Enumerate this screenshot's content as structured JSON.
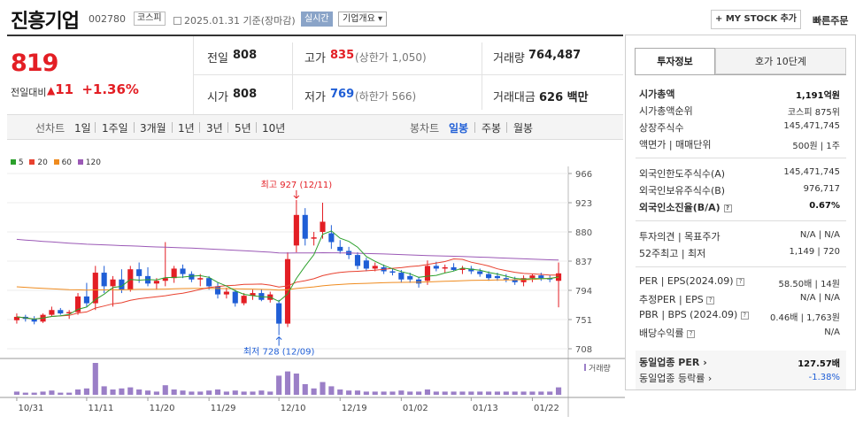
{
  "header": {
    "stock_name": "진흥기업",
    "stock_code": "002780",
    "market_badge": "코스피",
    "date_text": "2025.01.31 기준(장마감)",
    "realtime_label": "실시간",
    "company_overview_label": "기업개요 ▾",
    "my_stock_button": "+ MY STOCK 추가",
    "quick_order": "빠른주문"
  },
  "price": {
    "current": "819",
    "change_label": "전일대비",
    "change_arrow": "▲",
    "change_amount": "11",
    "change_percent": "+1.36%"
  },
  "summary": {
    "prev_close_label": "전일",
    "prev_close": "808",
    "open_label": "시가",
    "open": "808",
    "high_label": "고가",
    "high": "835",
    "upper_limit": "(상한가 1,050)",
    "low_label": "저가",
    "low": "769",
    "lower_limit": "(하한가 566)",
    "volume_label": "거래량",
    "volume": "764,487",
    "amount_label": "거래대금",
    "amount": "626",
    "amount_unit": "백만"
  },
  "periods": {
    "line_label": "선차트",
    "line_items": [
      "1일",
      "1주일",
      "3개월",
      "1년",
      "3년",
      "5년",
      "10년"
    ],
    "candle_label": "봉차트",
    "candle_items": [
      "일봉",
      "주봉",
      "월봉"
    ],
    "candle_selected": "일봉"
  },
  "legend": [
    {
      "label": "5",
      "color": "#2ca02c"
    },
    {
      "label": "20",
      "color": "#e8412f"
    },
    {
      "label": "60",
      "color": "#ef8b1f"
    },
    {
      "label": "120",
      "color": "#9b59b6"
    }
  ],
  "chart_data": {
    "type": "candlestick",
    "y_ticks": [
      "966",
      "923",
      "880",
      "837",
      "794",
      "751",
      "708"
    ],
    "ylim": [
      708,
      966
    ],
    "x_ticks": [
      "10/31",
      "11/11",
      "11/20",
      "11/29",
      "12/10",
      "12/19",
      "01/02",
      "01/13",
      "01/22"
    ],
    "high_annotation": "최고 927 (12/11)",
    "low_annotation": "최저 728 (12/09)",
    "volume_label": "거래량",
    "candles": [
      [
        750,
        760,
        745,
        755
      ],
      [
        755,
        758,
        748,
        752
      ],
      [
        752,
        756,
        744,
        748
      ],
      [
        748,
        760,
        746,
        758
      ],
      [
        758,
        770,
        755,
        765
      ],
      [
        765,
        768,
        758,
        760
      ],
      [
        760,
        765,
        752,
        762
      ],
      [
        762,
        790,
        758,
        785
      ],
      [
        785,
        805,
        770,
        775
      ],
      [
        775,
        830,
        765,
        820
      ],
      [
        820,
        830,
        790,
        800
      ],
      [
        800,
        815,
        770,
        810
      ],
      [
        810,
        825,
        790,
        795
      ],
      [
        795,
        830,
        792,
        825
      ],
      [
        825,
        835,
        805,
        815
      ],
      [
        815,
        828,
        800,
        804
      ],
      [
        804,
        812,
        795,
        808
      ],
      [
        808,
        865,
        800,
        812
      ],
      [
        812,
        830,
        805,
        826
      ],
      [
        826,
        832,
        812,
        818
      ],
      [
        818,
        822,
        806,
        810
      ],
      [
        810,
        818,
        800,
        812
      ],
      [
        812,
        815,
        795,
        800
      ],
      [
        800,
        805,
        782,
        788
      ],
      [
        788,
        798,
        782,
        792
      ],
      [
        792,
        795,
        770,
        775
      ],
      [
        775,
        790,
        772,
        786
      ],
      [
        786,
        795,
        780,
        790
      ],
      [
        790,
        796,
        778,
        780
      ],
      [
        780,
        792,
        776,
        788
      ],
      [
        775,
        780,
        728,
        745
      ],
      [
        745,
        850,
        740,
        840
      ],
      [
        860,
        927,
        850,
        905
      ],
      [
        905,
        915,
        860,
        870
      ],
      [
        870,
        880,
        860,
        872
      ],
      [
        880,
        923,
        870,
        895
      ],
      [
        878,
        890,
        855,
        865
      ],
      [
        858,
        868,
        848,
        852
      ],
      [
        852,
        858,
        840,
        846
      ],
      [
        846,
        850,
        825,
        830
      ],
      [
        838,
        842,
        822,
        826
      ],
      [
        826,
        835,
        822,
        830
      ],
      [
        828,
        832,
        818,
        822
      ],
      [
        822,
        826,
        816,
        820
      ],
      [
        820,
        824,
        805,
        810
      ],
      [
        815,
        820,
        805,
        810
      ],
      [
        810,
        814,
        798,
        804
      ],
      [
        808,
        838,
        802,
        830
      ],
      [
        830,
        836,
        822,
        826
      ],
      [
        826,
        832,
        820,
        828
      ],
      [
        828,
        834,
        822,
        824
      ],
      [
        824,
        830,
        818,
        826
      ],
      [
        826,
        830,
        818,
        822
      ],
      [
        822,
        826,
        814,
        818
      ],
      [
        818,
        822,
        808,
        812
      ],
      [
        815,
        820,
        808,
        812
      ],
      [
        812,
        818,
        806,
        810
      ],
      [
        810,
        814,
        802,
        806
      ],
      [
        806,
        816,
        800,
        812
      ],
      [
        812,
        818,
        806,
        816
      ],
      [
        816,
        820,
        808,
        812
      ],
      [
        812,
        816,
        806,
        810
      ],
      [
        808,
        835,
        769,
        819
      ]
    ],
    "volumes": [
      3,
      2,
      2,
      3,
      4,
      2,
      2,
      5,
      6,
      30,
      8,
      5,
      6,
      7,
      5,
      4,
      3,
      9,
      5,
      4,
      3,
      3,
      4,
      5,
      3,
      4,
      3,
      3,
      4,
      3,
      18,
      22,
      20,
      10,
      6,
      12,
      8,
      5,
      4,
      4,
      3,
      3,
      3,
      3,
      4,
      3,
      3,
      5,
      3,
      3,
      3,
      3,
      3,
      3,
      3,
      3,
      3,
      3,
      3,
      3,
      3,
      3,
      7
    ]
  },
  "right_panel": {
    "tab_active": "투자정보",
    "tab_inactive": "호가 10단계",
    "market_cap_label": "시가총액",
    "market_cap": "1,191억원",
    "market_cap_rank_label": "시가총액순위",
    "market_cap_rank": "코스피 875위",
    "shares_label": "상장주식수",
    "shares": "145,471,745",
    "par_label": "액면가 | 매매단위",
    "par": "500원 | 1주",
    "foreign_limit_label": "외국인한도주식수(A)",
    "foreign_limit": "145,471,745",
    "foreign_hold_label": "외국인보유주식수(B)",
    "foreign_hold": "976,717",
    "foreign_rate_label": "외국인소진율(B/A)",
    "foreign_rate": "0.67%",
    "opinion_label": "투자의견 | 목표주가",
    "opinion": "N/A | N/A",
    "week52_label": "52주최고 | 최저",
    "week52": "1,149 | 720",
    "per_label": "PER | EPS(2024.09)",
    "per": "58.50배 | 14원",
    "est_per_label": "추정PER | EPS",
    "est_per": "N/A | N/A",
    "pbr_label": "PBR | BPS (2024.09)",
    "pbr": "0.46배 | 1,763원",
    "dividend_label": "배당수익률",
    "dividend": "N/A",
    "peer_per_label": "동일업종 PER",
    "peer_per": "127.57배",
    "peer_change_label": "동일업종 등락률",
    "peer_change": "-1.38%"
  }
}
